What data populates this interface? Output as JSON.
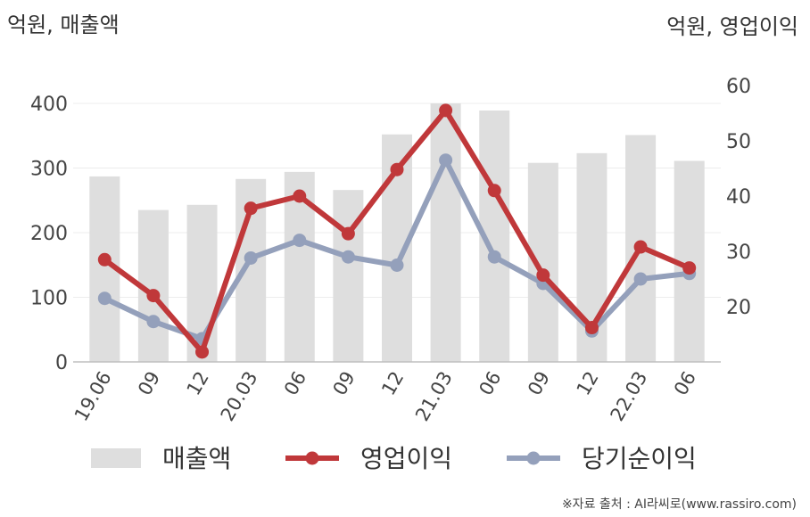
{
  "chart_data": {
    "type": "bar+line",
    "categories": [
      "19.06",
      "09",
      "12",
      "20.03",
      "06",
      "09",
      "12",
      "21.03",
      "06",
      "09",
      "12",
      "22.03",
      "06"
    ],
    "left_axis": {
      "unit_label": "억원, 매출액",
      "ticks": [
        "0",
        "100",
        "200",
        "300",
        "400"
      ],
      "ylim": [
        0,
        400
      ]
    },
    "right_axis": {
      "unit_label": "억원, 영업이익",
      "ticks": [
        "20",
        "30",
        "40",
        "50",
        "60"
      ],
      "ylim": [
        10,
        60
      ]
    },
    "series": [
      {
        "name": "매출액",
        "kind": "bar",
        "axis": "left",
        "color": "#dedede",
        "values": [
          287,
          235,
          243,
          283,
          294,
          266,
          352,
          400,
          389,
          308,
          323,
          351,
          311
        ]
      },
      {
        "name": "영업이익",
        "kind": "line",
        "axis": "right",
        "color": "#c0383a",
        "values": [
          28.5,
          22.0,
          11.8,
          37.8,
          40.0,
          33.2,
          44.8,
          55.5,
          41.0,
          25.7,
          16.2,
          30.8,
          27.0
        ]
      },
      {
        "name": "당기순이익",
        "kind": "line",
        "axis": "right",
        "color": "#94a0bb",
        "values": [
          21.5,
          17.3,
          14.2,
          28.8,
          32.0,
          29.0,
          27.5,
          46.5,
          29.0,
          24.2,
          15.6,
          25.0,
          26.0
        ]
      }
    ],
    "grid": true,
    "legend_position": "bottom"
  },
  "source_note": "※자료 출처 : AI라씨로(www.rassiro.com)"
}
